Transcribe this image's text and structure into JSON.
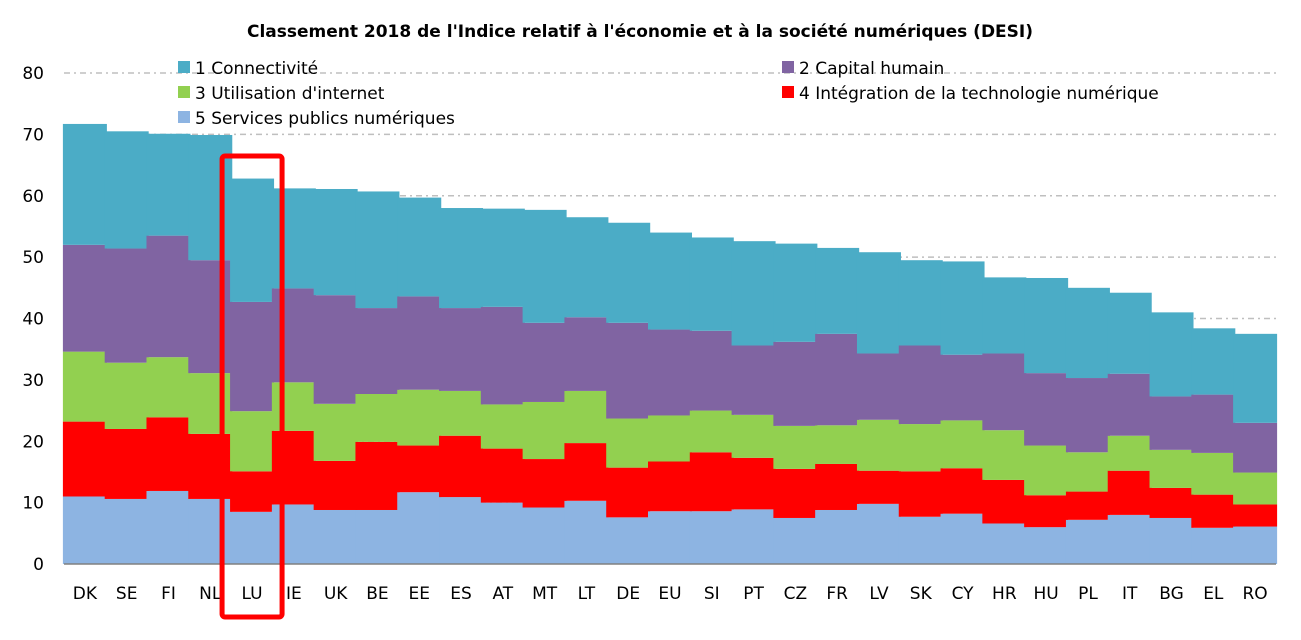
{
  "chart_data": {
    "type": "bar",
    "stacked": true,
    "title": "Classement 2018 de l'Indice relatif à l'économie et à la société numériques (DESI)",
    "xlabel": "",
    "ylabel": "",
    "ylim": [
      0,
      80
    ],
    "yticks": [
      0,
      10,
      20,
      30,
      40,
      50,
      60,
      70,
      80
    ],
    "grid": true,
    "highlight": "LU",
    "categories": [
      "DK",
      "SE",
      "FI",
      "NL",
      "LU",
      "IE",
      "UK",
      "BE",
      "EE",
      "ES",
      "AT",
      "MT",
      "LT",
      "DE",
      "EU",
      "SI",
      "PT",
      "CZ",
      "FR",
      "LV",
      "SK",
      "CY",
      "HR",
      "HU",
      "PL",
      "IT",
      "BG",
      "EL",
      "RO"
    ],
    "series": [
      {
        "name": "5 Services publics numériques",
        "color": "#8DB4E2",
        "values": [
          11.0,
          10.6,
          11.9,
          10.6,
          8.5,
          9.7,
          8.8,
          8.8,
          11.7,
          10.9,
          10.0,
          9.2,
          10.3,
          7.6,
          8.6,
          8.6,
          8.9,
          7.5,
          8.8,
          9.8,
          7.7,
          8.2,
          6.6,
          6.0,
          7.2,
          8.0,
          7.5,
          5.9,
          6.1
        ]
      },
      {
        "name": "4 Intégration de la technologie numérique",
        "color": "#FF0000",
        "values": [
          12.2,
          11.4,
          12.0,
          10.6,
          6.6,
          12.0,
          8.0,
          11.1,
          7.6,
          10.0,
          8.8,
          7.9,
          9.4,
          8.1,
          8.1,
          9.6,
          8.4,
          8.0,
          7.5,
          5.4,
          7.4,
          7.4,
          7.1,
          5.2,
          4.6,
          7.2,
          4.9,
          5.4,
          3.6
        ]
      },
      {
        "name": "3 Utilisation d'internet",
        "color": "#92D050",
        "values": [
          11.4,
          10.8,
          9.8,
          9.9,
          9.8,
          7.9,
          9.3,
          7.8,
          9.1,
          7.3,
          7.2,
          9.3,
          8.5,
          8.0,
          7.5,
          6.8,
          7.0,
          7.0,
          6.3,
          8.3,
          7.7,
          7.8,
          8.1,
          8.1,
          6.4,
          5.7,
          6.2,
          6.8,
          5.2
        ]
      },
      {
        "name": "2 Capital humain",
        "color": "#8064A2",
        "values": [
          17.4,
          18.6,
          19.8,
          18.4,
          17.8,
          15.3,
          17.7,
          14.0,
          15.2,
          13.5,
          15.9,
          12.9,
          12.0,
          15.6,
          14.0,
          13.0,
          11.3,
          13.7,
          14.9,
          10.8,
          12.8,
          10.7,
          12.5,
          11.8,
          12.1,
          10.1,
          8.7,
          9.5,
          8.1
        ]
      },
      {
        "name": "1 Connectivité",
        "color": "#4BACC6",
        "values": [
          19.7,
          19.1,
          16.6,
          20.4,
          20.1,
          16.3,
          17.3,
          19.0,
          16.1,
          16.3,
          16.0,
          18.4,
          16.3,
          16.3,
          15.8,
          15.2,
          17.0,
          16.0,
          14.0,
          16.5,
          13.9,
          15.2,
          12.4,
          15.5,
          14.7,
          13.2,
          13.7,
          10.8,
          14.5
        ]
      }
    ],
    "legend": [
      {
        "label": "1 Connectivité",
        "color": "#4BACC6"
      },
      {
        "label": "2 Capital humain",
        "color": "#8064A2"
      },
      {
        "label": "3 Utilisation d'internet",
        "color": "#92D050"
      },
      {
        "label": "4 Intégration de la technologie numérique",
        "color": "#FF0000"
      },
      {
        "label": "5 Services publics numériques",
        "color": "#8DB4E2"
      }
    ],
    "highlight_color": "#FF0000",
    "grid_color": "#BFBFBF"
  }
}
